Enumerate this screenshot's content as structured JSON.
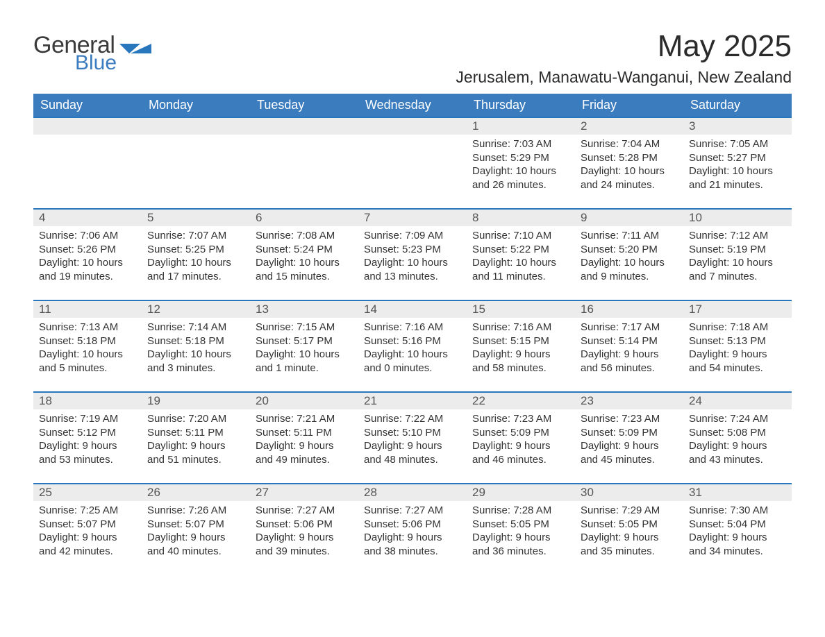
{
  "brand": {
    "part1": "General",
    "part2": "Blue",
    "flag_color": "#2876bb",
    "text_gray": "#3a3a3a"
  },
  "title": "May 2025",
  "location": "Jerusalem, Manawatu-Wanganui, New Zealand",
  "colors": {
    "header_bg": "#3b7cbe",
    "header_fg": "#ffffff",
    "rule": "#2876bb",
    "daynum_bg": "#ececec",
    "body_text": "#333333",
    "background": "#ffffff"
  },
  "weekdays": [
    "Sunday",
    "Monday",
    "Tuesday",
    "Wednesday",
    "Thursday",
    "Friday",
    "Saturday"
  ],
  "weeks": [
    [
      null,
      null,
      null,
      null,
      {
        "n": "1",
        "sunrise": "7:03 AM",
        "sunset": "5:29 PM",
        "daylight": "10 hours and 26 minutes."
      },
      {
        "n": "2",
        "sunrise": "7:04 AM",
        "sunset": "5:28 PM",
        "daylight": "10 hours and 24 minutes."
      },
      {
        "n": "3",
        "sunrise": "7:05 AM",
        "sunset": "5:27 PM",
        "daylight": "10 hours and 21 minutes."
      }
    ],
    [
      {
        "n": "4",
        "sunrise": "7:06 AM",
        "sunset": "5:26 PM",
        "daylight": "10 hours and 19 minutes."
      },
      {
        "n": "5",
        "sunrise": "7:07 AM",
        "sunset": "5:25 PM",
        "daylight": "10 hours and 17 minutes."
      },
      {
        "n": "6",
        "sunrise": "7:08 AM",
        "sunset": "5:24 PM",
        "daylight": "10 hours and 15 minutes."
      },
      {
        "n": "7",
        "sunrise": "7:09 AM",
        "sunset": "5:23 PM",
        "daylight": "10 hours and 13 minutes."
      },
      {
        "n": "8",
        "sunrise": "7:10 AM",
        "sunset": "5:22 PM",
        "daylight": "10 hours and 11 minutes."
      },
      {
        "n": "9",
        "sunrise": "7:11 AM",
        "sunset": "5:20 PM",
        "daylight": "10 hours and 9 minutes."
      },
      {
        "n": "10",
        "sunrise": "7:12 AM",
        "sunset": "5:19 PM",
        "daylight": "10 hours and 7 minutes."
      }
    ],
    [
      {
        "n": "11",
        "sunrise": "7:13 AM",
        "sunset": "5:18 PM",
        "daylight": "10 hours and 5 minutes."
      },
      {
        "n": "12",
        "sunrise": "7:14 AM",
        "sunset": "5:18 PM",
        "daylight": "10 hours and 3 minutes."
      },
      {
        "n": "13",
        "sunrise": "7:15 AM",
        "sunset": "5:17 PM",
        "daylight": "10 hours and 1 minute."
      },
      {
        "n": "14",
        "sunrise": "7:16 AM",
        "sunset": "5:16 PM",
        "daylight": "10 hours and 0 minutes."
      },
      {
        "n": "15",
        "sunrise": "7:16 AM",
        "sunset": "5:15 PM",
        "daylight": "9 hours and 58 minutes."
      },
      {
        "n": "16",
        "sunrise": "7:17 AM",
        "sunset": "5:14 PM",
        "daylight": "9 hours and 56 minutes."
      },
      {
        "n": "17",
        "sunrise": "7:18 AM",
        "sunset": "5:13 PM",
        "daylight": "9 hours and 54 minutes."
      }
    ],
    [
      {
        "n": "18",
        "sunrise": "7:19 AM",
        "sunset": "5:12 PM",
        "daylight": "9 hours and 53 minutes."
      },
      {
        "n": "19",
        "sunrise": "7:20 AM",
        "sunset": "5:11 PM",
        "daylight": "9 hours and 51 minutes."
      },
      {
        "n": "20",
        "sunrise": "7:21 AM",
        "sunset": "5:11 PM",
        "daylight": "9 hours and 49 minutes."
      },
      {
        "n": "21",
        "sunrise": "7:22 AM",
        "sunset": "5:10 PM",
        "daylight": "9 hours and 48 minutes."
      },
      {
        "n": "22",
        "sunrise": "7:23 AM",
        "sunset": "5:09 PM",
        "daylight": "9 hours and 46 minutes."
      },
      {
        "n": "23",
        "sunrise": "7:23 AM",
        "sunset": "5:09 PM",
        "daylight": "9 hours and 45 minutes."
      },
      {
        "n": "24",
        "sunrise": "7:24 AM",
        "sunset": "5:08 PM",
        "daylight": "9 hours and 43 minutes."
      }
    ],
    [
      {
        "n": "25",
        "sunrise": "7:25 AM",
        "sunset": "5:07 PM",
        "daylight": "9 hours and 42 minutes."
      },
      {
        "n": "26",
        "sunrise": "7:26 AM",
        "sunset": "5:07 PM",
        "daylight": "9 hours and 40 minutes."
      },
      {
        "n": "27",
        "sunrise": "7:27 AM",
        "sunset": "5:06 PM",
        "daylight": "9 hours and 39 minutes."
      },
      {
        "n": "28",
        "sunrise": "7:27 AM",
        "sunset": "5:06 PM",
        "daylight": "9 hours and 38 minutes."
      },
      {
        "n": "29",
        "sunrise": "7:28 AM",
        "sunset": "5:05 PM",
        "daylight": "9 hours and 36 minutes."
      },
      {
        "n": "30",
        "sunrise": "7:29 AM",
        "sunset": "5:05 PM",
        "daylight": "9 hours and 35 minutes."
      },
      {
        "n": "31",
        "sunrise": "7:30 AM",
        "sunset": "5:04 PM",
        "daylight": "9 hours and 34 minutes."
      }
    ]
  ],
  "labels": {
    "sunrise": "Sunrise: ",
    "sunset": "Sunset: ",
    "daylight": "Daylight: "
  }
}
